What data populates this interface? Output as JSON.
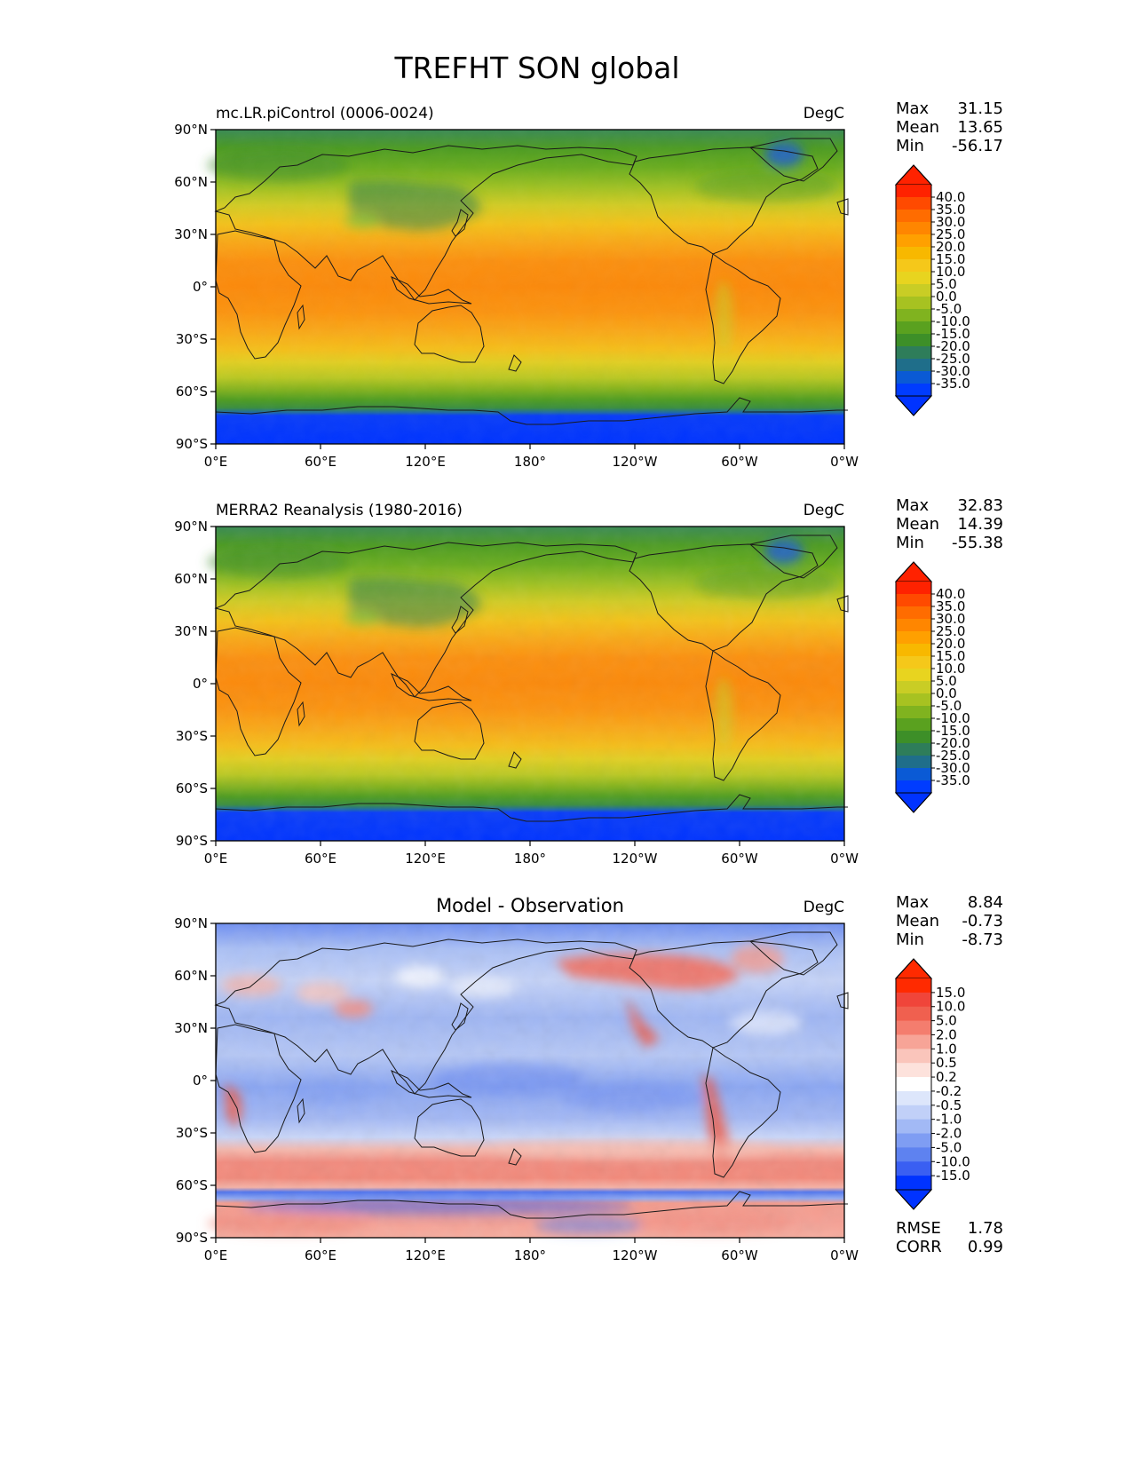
{
  "figure": {
    "title": "TREFHT SON global"
  },
  "axes": {
    "lat_labels": [
      "90°N",
      "60°N",
      "30°N",
      "0°",
      "30°S",
      "60°S",
      "90°S"
    ],
    "lon_labels": [
      "0°E",
      "60°E",
      "120°E",
      "180°",
      "120°W",
      "60°W",
      "0°W"
    ]
  },
  "panels": [
    {
      "id": "model",
      "title": "mc.LR.piControl (0006-0024)",
      "center_title": "",
      "units": "DegC",
      "stats": [
        {
          "label": "Max",
          "value": "31.15"
        },
        {
          "label": "Mean",
          "value": "13.65"
        },
        {
          "label": "Min",
          "value": "-56.17"
        }
      ],
      "colorbar_labels": [
        "40.0",
        "35.0",
        "30.0",
        "25.0",
        "20.0",
        "15.0",
        "10.0",
        "5.0",
        "0.0",
        "-5.0",
        "-10.0",
        "-15.0",
        "-20.0",
        "-25.0",
        "-30.0",
        "-35.0"
      ],
      "colorbar_colors": [
        "#ff2200",
        "#ff4a00",
        "#ff6c00",
        "#ff8600",
        "#ffa000",
        "#f8b800",
        "#f5c81a",
        "#e8d41f",
        "#c9cd25",
        "#a7c221",
        "#80b31f",
        "#5aa11f",
        "#3d8f28",
        "#2e7d5a",
        "#1f6e8a",
        "#0a5ad5",
        "#003cff"
      ],
      "extend_top_color": "#ff2200",
      "extend_bottom_color": "#0033ff",
      "footer": []
    },
    {
      "id": "obs",
      "title": "MERRA2 Reanalysis (1980-2016)",
      "center_title": "",
      "units": "DegC",
      "stats": [
        {
          "label": "Max",
          "value": "32.83"
        },
        {
          "label": "Mean",
          "value": "14.39"
        },
        {
          "label": "Min",
          "value": "-55.38"
        }
      ],
      "colorbar_labels": [
        "40.0",
        "35.0",
        "30.0",
        "25.0",
        "20.0",
        "15.0",
        "10.0",
        "5.0",
        "0.0",
        "-5.0",
        "-10.0",
        "-15.0",
        "-20.0",
        "-25.0",
        "-30.0",
        "-35.0"
      ],
      "colorbar_colors": [
        "#ff2200",
        "#ff4a00",
        "#ff6c00",
        "#ff8600",
        "#ffa000",
        "#f8b800",
        "#f5c81a",
        "#e8d41f",
        "#c9cd25",
        "#a7c221",
        "#80b31f",
        "#5aa11f",
        "#3d8f28",
        "#2e7d5a",
        "#1f6e8a",
        "#0a5ad5",
        "#003cff"
      ],
      "extend_top_color": "#ff2200",
      "extend_bottom_color": "#0033ff",
      "footer": []
    },
    {
      "id": "diff",
      "title": "",
      "center_title": "Model - Observation",
      "units": "DegC",
      "stats": [
        {
          "label": "Max",
          "value": "8.84"
        },
        {
          "label": "Mean",
          "value": "-0.73"
        },
        {
          "label": "Min",
          "value": "-8.73"
        }
      ],
      "colorbar_labels": [
        "15.0",
        "10.0",
        "5.0",
        "2.0",
        "1.0",
        "0.5",
        "0.2",
        "-0.2",
        "-0.5",
        "-1.0",
        "-2.0",
        "-5.0",
        "-10.0",
        "-15.0"
      ],
      "colorbar_colors": [
        "#ff2a00",
        "#f0453a",
        "#f0604f",
        "#f47d6e",
        "#f7a497",
        "#fac5bb",
        "#fde2dc",
        "#ffffff",
        "#dde6fb",
        "#c1d0f8",
        "#a2b9f5",
        "#7f9df3",
        "#5e82f0",
        "#3a5ff2",
        "#0033ff"
      ],
      "extend_top_color": "#ff2a00",
      "extend_bottom_color": "#0033ff",
      "footer": [
        {
          "label": "RMSE",
          "value": "1.78"
        },
        {
          "label": "CORR",
          "value": "0.99"
        }
      ]
    }
  ]
}
